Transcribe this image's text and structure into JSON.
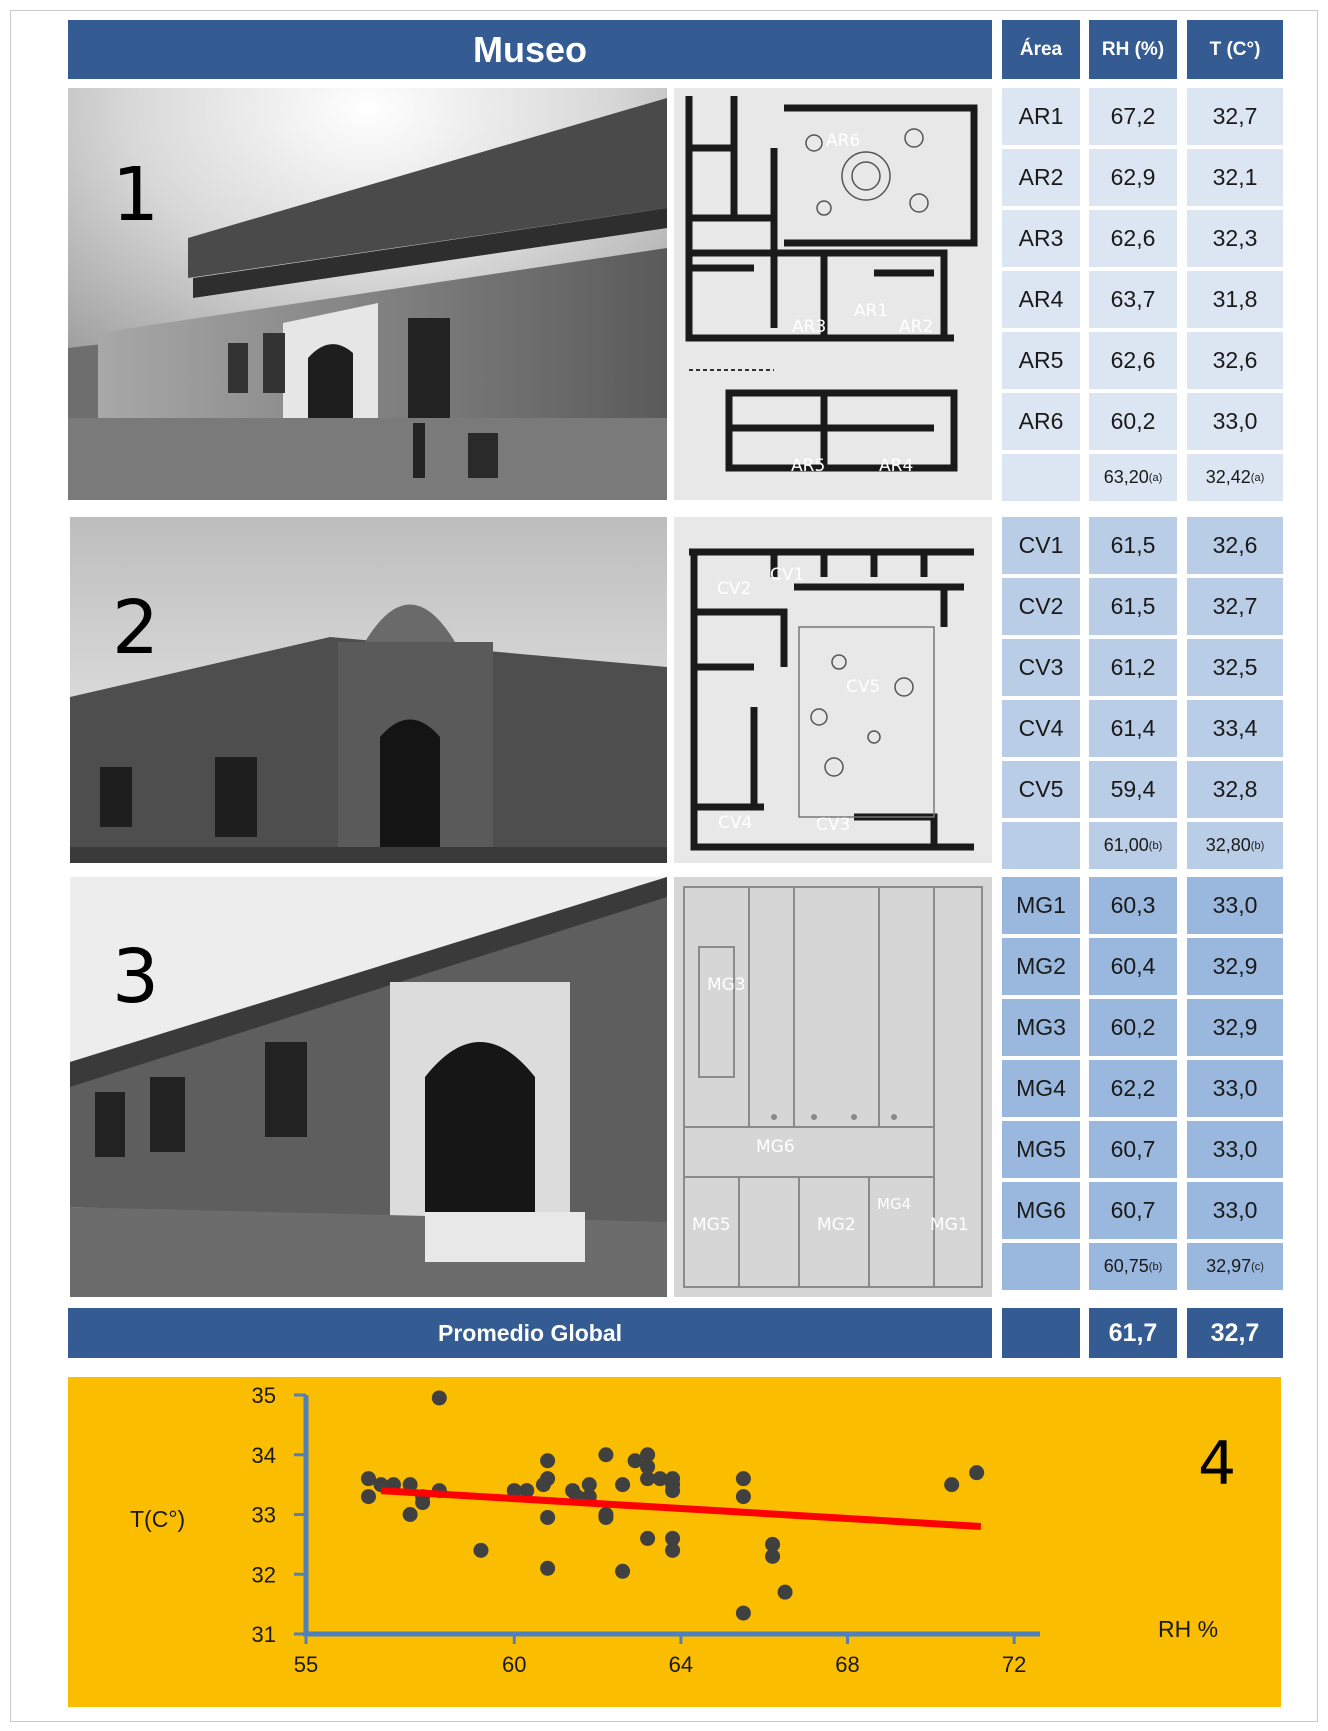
{
  "header": {
    "title": "Museo",
    "col_area": "Área",
    "col_rh": "RH (%)",
    "col_t": "T (C°)"
  },
  "sections": [
    {
      "number": "1",
      "plan_labels": [
        "AR6",
        "AR1",
        "AR3",
        "AR2",
        "AR5",
        "AR4"
      ],
      "rows": [
        [
          "AR1",
          "67,2",
          "32,7"
        ],
        [
          "AR2",
          "62,9",
          "32,1"
        ],
        [
          "AR3",
          "62,6",
          "32,3"
        ],
        [
          "AR4",
          "63,7",
          "31,8"
        ],
        [
          "AR5",
          "62,6",
          "32,6"
        ],
        [
          "AR6",
          "60,2",
          "33,0"
        ]
      ],
      "avg_rh": "63,20",
      "avg_rh_note": "(a)",
      "avg_t": "32,42",
      "avg_t_note": "(a)"
    },
    {
      "number": "2",
      "plan_labels": [
        "CV2",
        "CV1",
        "CV5",
        "CV4",
        "CV3"
      ],
      "rows": [
        [
          "CV1",
          "61,5",
          "32,6"
        ],
        [
          "CV2",
          "61,5",
          "32,7"
        ],
        [
          "CV3",
          "61,2",
          "32,5"
        ],
        [
          "CV4",
          "61,4",
          "33,4"
        ],
        [
          "CV5",
          "59,4",
          "32,8"
        ]
      ],
      "avg_rh": "61,00",
      "avg_rh_note": "(b)",
      "avg_t": "32,80",
      "avg_t_note": "(b)"
    },
    {
      "number": "3",
      "plan_labels": [
        "MG3",
        "MG6",
        "MG4",
        "MG5",
        "MG2",
        "MG1"
      ],
      "rows": [
        [
          "MG1",
          "60,3",
          "33,0"
        ],
        [
          "MG2",
          "60,4",
          "32,9"
        ],
        [
          "MG3",
          "60,2",
          "32,9"
        ],
        [
          "MG4",
          "62,2",
          "33,0"
        ],
        [
          "MG5",
          "60,7",
          "33,0"
        ],
        [
          "MG6",
          "60,7",
          "33,0"
        ]
      ],
      "avg_rh": "60,75",
      "avg_rh_note": "(b)",
      "avg_t": "32,97",
      "avg_t_note": "(c)"
    }
  ],
  "footer": {
    "label": "Promedio Global",
    "rh": "61,7",
    "t": "32,7"
  },
  "chart_number": "4",
  "chart_data": {
    "type": "scatter",
    "xlabel": "RH %",
    "ylabel": "T(C°)",
    "xlim": [
      55,
      72.5
    ],
    "ylim": [
      31,
      35
    ],
    "xticks": [
      55,
      60,
      64,
      68,
      72
    ],
    "yticks": [
      31,
      32,
      33,
      34,
      35
    ],
    "trendline": {
      "x": [
        56.8,
        71.2
      ],
      "y": [
        33.4,
        32.8
      ],
      "color": "#ff0000"
    },
    "point_color": "#404040",
    "points": [
      [
        56.5,
        33.6
      ],
      [
        56.5,
        33.3
      ],
      [
        56.8,
        33.5
      ],
      [
        57.1,
        33.5
      ],
      [
        57.5,
        33.5
      ],
      [
        57.5,
        33.0
      ],
      [
        57.8,
        33.3
      ],
      [
        57.8,
        33.2
      ],
      [
        58.2,
        34.95
      ],
      [
        58.2,
        33.4
      ],
      [
        59.2,
        32.4
      ],
      [
        60.0,
        33.4
      ],
      [
        60.3,
        33.4
      ],
      [
        60.7,
        33.5
      ],
      [
        60.8,
        33.6
      ],
      [
        60.8,
        33.9
      ],
      [
        60.8,
        32.95
      ],
      [
        60.8,
        32.1
      ],
      [
        61.4,
        33.4
      ],
      [
        61.5,
        33.3
      ],
      [
        61.8,
        33.5
      ],
      [
        61.8,
        33.3
      ],
      [
        62.2,
        34.0
      ],
      [
        62.2,
        33.0
      ],
      [
        62.2,
        32.95
      ],
      [
        62.6,
        33.5
      ],
      [
        62.6,
        32.05
      ],
      [
        62.9,
        33.9
      ],
      [
        63.2,
        34.0
      ],
      [
        63.2,
        33.8
      ],
      [
        63.2,
        33.6
      ],
      [
        63.2,
        32.6
      ],
      [
        63.5,
        33.6
      ],
      [
        63.8,
        33.6
      ],
      [
        63.8,
        33.5
      ],
      [
        63.8,
        33.4
      ],
      [
        63.8,
        32.6
      ],
      [
        63.8,
        32.4
      ],
      [
        65.5,
        33.6
      ],
      [
        65.5,
        33.3
      ],
      [
        65.5,
        31.35
      ],
      [
        66.2,
        32.5
      ],
      [
        66.2,
        32.3
      ],
      [
        66.5,
        31.7
      ],
      [
        70.5,
        33.5
      ],
      [
        71.1,
        33.7
      ]
    ]
  }
}
